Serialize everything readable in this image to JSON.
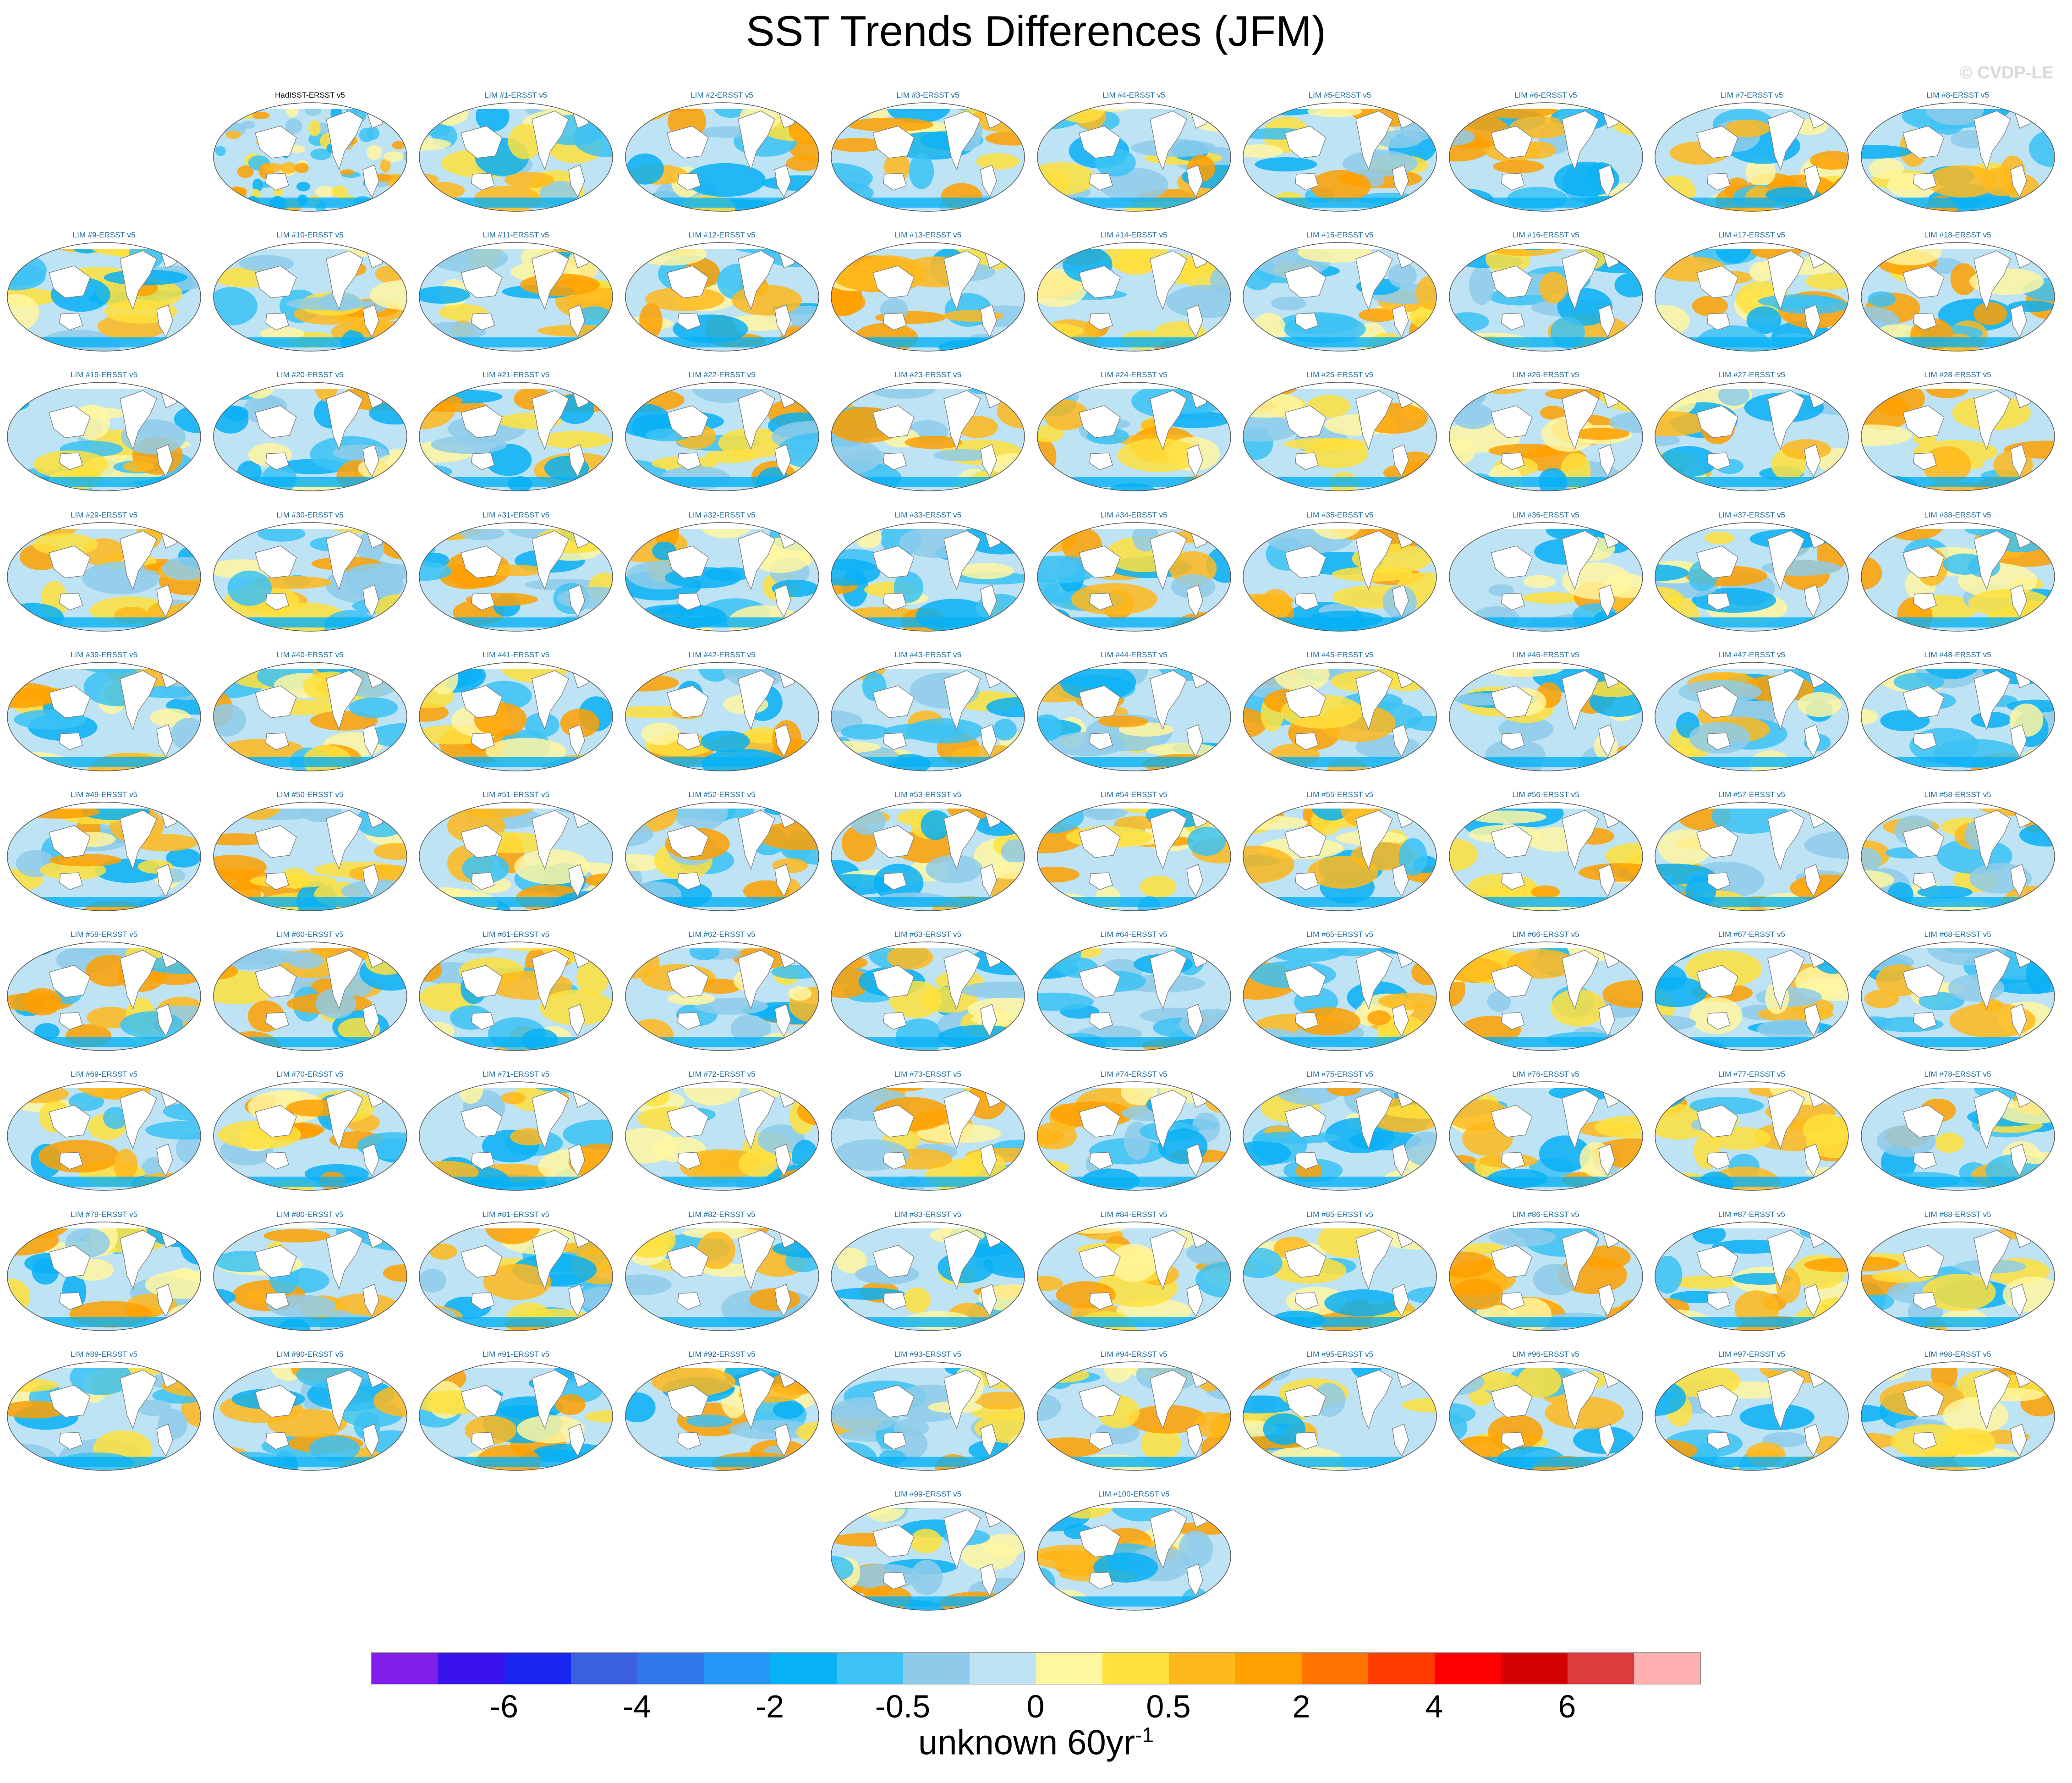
{
  "figure": {
    "title": "SST Trends Differences (JFM)",
    "watermark": "© CVDP-LE"
  },
  "chart_data": {
    "type": "heatmap",
    "panels": [
      "HadISST-ERSST v5",
      "LIM #1-ERSST v5",
      "LIM #2-ERSST v5",
      "LIM #3-ERSST v5",
      "LIM #4-ERSST v5",
      "LIM #5-ERSST v5",
      "LIM #6-ERSST v5",
      "LIM #7-ERSST v5",
      "LIM #8-ERSST v5",
      "LIM #9-ERSST v5",
      "LIM #10-ERSST v5",
      "LIM #11-ERSST v5",
      "LIM #12-ERSST v5",
      "LIM #13-ERSST v5",
      "LIM #14-ERSST v5",
      "LIM #15-ERSST v5",
      "LIM #16-ERSST v5",
      "LIM #17-ERSST v5",
      "LIM #18-ERSST v5",
      "LIM #19-ERSST v5",
      "LIM #20-ERSST v5",
      "LIM #21-ERSST v5",
      "LIM #22-ERSST v5",
      "LIM #23-ERSST v5",
      "LIM #24-ERSST v5",
      "LIM #25-ERSST v5",
      "LIM #26-ERSST v5",
      "LIM #27-ERSST v5",
      "LIM #28-ERSST v5",
      "LIM #29-ERSST v5",
      "LIM #30-ERSST v5",
      "LIM #31-ERSST v5",
      "LIM #32-ERSST v5",
      "LIM #33-ERSST v5",
      "LIM #34-ERSST v5",
      "LIM #35-ERSST v5",
      "LIM #36-ERSST v5",
      "LIM #37-ERSST v5",
      "LIM #38-ERSST v5",
      "LIM #39-ERSST v5",
      "LIM #40-ERSST v5",
      "LIM #41-ERSST v5",
      "LIM #42-ERSST v5",
      "LIM #43-ERSST v5",
      "LIM #44-ERSST v5",
      "LIM #45-ERSST v5",
      "LIM #46-ERSST v5",
      "LIM #47-ERSST v5",
      "LIM #48-ERSST v5",
      "LIM #49-ERSST v5",
      "LIM #50-ERSST v5",
      "LIM #51-ERSST v5",
      "LIM #52-ERSST v5",
      "LIM #53-ERSST v5",
      "LIM #54-ERSST v5",
      "LIM #55-ERSST v5",
      "LIM #56-ERSST v5",
      "LIM #57-ERSST v5",
      "LIM #58-ERSST v5",
      "LIM #59-ERSST v5",
      "LIM #60-ERSST v5",
      "LIM #61-ERSST v5",
      "LIM #62-ERSST v5",
      "LIM #63-ERSST v5",
      "LIM #64-ERSST v5",
      "LIM #65-ERSST v5",
      "LIM #66-ERSST v5",
      "LIM #67-ERSST v5",
      "LIM #68-ERSST v5",
      "LIM #69-ERSST v5",
      "LIM #70-ERSST v5",
      "LIM #71-ERSST v5",
      "LIM #72-ERSST v5",
      "LIM #73-ERSST v5",
      "LIM #74-ERSST v5",
      "LIM #75-ERSST v5",
      "LIM #76-ERSST v5",
      "LIM #77-ERSST v5",
      "LIM #78-ERSST v5",
      "LIM #79-ERSST v5",
      "LIM #80-ERSST v5",
      "LIM #81-ERSST v5",
      "LIM #82-ERSST v5",
      "LIM #83-ERSST v5",
      "LIM #84-ERSST v5",
      "LIM #85-ERSST v5",
      "LIM #86-ERSST v5",
      "LIM #87-ERSST v5",
      "LIM #88-ERSST v5",
      "LIM #89-ERSST v5",
      "LIM #90-ERSST v5",
      "LIM #91-ERSST v5",
      "LIM #92-ERSST v5",
      "LIM #93-ERSST v5",
      "LIM #94-ERSST v5",
      "LIM #95-ERSST v5",
      "LIM #96-ERSST v5",
      "LIM #97-ERSST v5",
      "LIM #98-ERSST v5",
      "LIM #99-ERSST v5",
      "LIM #100-ERSST v5"
    ],
    "colorbar": {
      "colors": [
        "#7e1ee8",
        "#3a12ec",
        "#1a26f0",
        "#3a5fe0",
        "#2f78ea",
        "#2596f5",
        "#08b0f5",
        "#3cc2f4",
        "#8ecbea",
        "#bde3f4",
        "#fff6a0",
        "#ffe03c",
        "#ffb81c",
        "#ffa000",
        "#ff7400",
        "#ff3c00",
        "#ff0000",
        "#d20000",
        "#dc3c3c",
        "#ffb0b0"
      ],
      "tick_labels": [
        "-6",
        "-4",
        "-2",
        "-0.5",
        "0",
        "0.5",
        "2",
        "4",
        "6"
      ],
      "unit": "unknown 60yr",
      "unit_exponent": "-1"
    },
    "title_colors": {
      "observation": "#000000",
      "model": "#1e6fa0"
    }
  }
}
